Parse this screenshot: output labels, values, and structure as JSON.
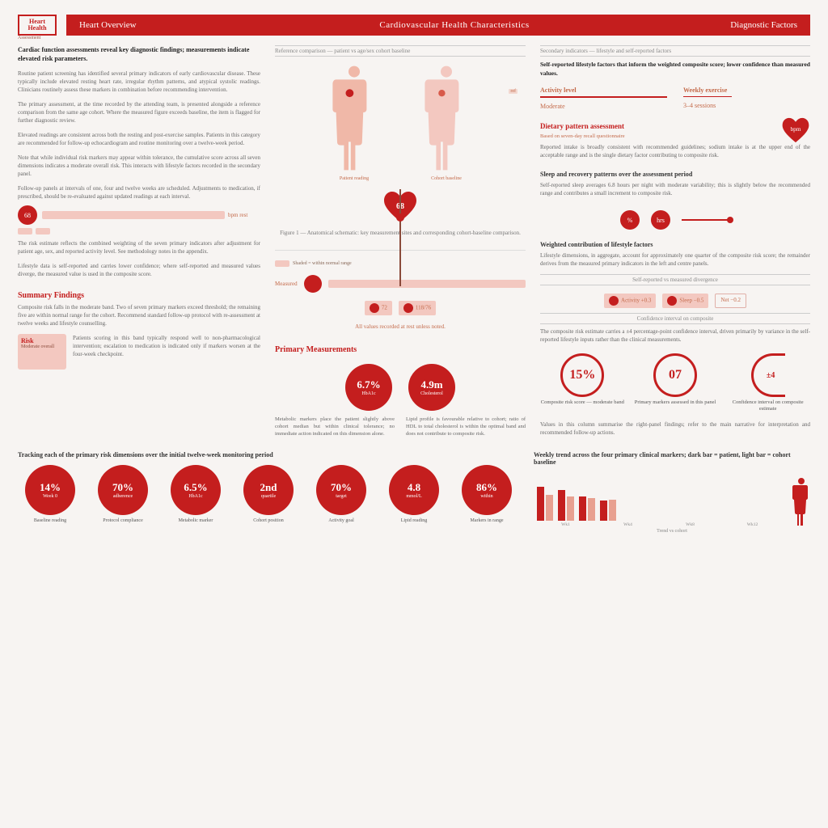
{
  "colors": {
    "accent": "#c41e1e",
    "accent_light": "#f3c8c0",
    "text": "#3a3a3a",
    "text_muted": "#666",
    "bg": "#f7f4f2"
  },
  "logo": {
    "title": "Heart\nHealth",
    "sub": "Assessment"
  },
  "header": {
    "left": "Heart Overview",
    "center": "Cardiovascular Health Characteristics",
    "right": "Diagnostic Factors"
  },
  "left": {
    "intro": "Cardiac function assessments reveal key diagnostic findings; measurements indicate elevated risk parameters.",
    "p1": "Routine patient screening has identified several primary indicators of early cardiovascular disease. These typically include elevated resting heart rate, irregular rhythm patterns, and atypical systolic readings. Clinicians routinely assess these markers in combination before recommending intervention.",
    "p2": "The primary assessment, at the time recorded by the attending team, is presented alongside a reference comparison from the same age cohort. Where the measured figure exceeds baseline, the item is flagged for further diagnostic review.",
    "p3": "Elevated readings are consistent across both the resting and post-exercise samples. Patients in this category are recommended for follow-up echocardiogram and routine monitoring over a twelve-week period.",
    "p4": "Note that while individual risk markers may appear within tolerance, the cumulative score across all seven dimensions indicates a moderate overall risk. This interacts with lifestyle factors recorded in the secondary panel.",
    "p5": "Follow-up panels at intervals of one, four and twelve weeks are scheduled. Adjustments to medication, if prescribed, should be re-evaluated against updated readings at each interval.",
    "prog": {
      "dot": "68",
      "label": "bpm rest"
    },
    "p6": "The risk estimate reflects the combined weighting of the seven primary indicators after adjustment for patient age, sex, and reported activity level. See methodology notes in the appendix.",
    "p7": "Lifestyle data is self-reported and carries lower confidence; where self-reported and measured values diverge, the measured value is used in the composite score.",
    "section": "Summary Findings",
    "p8": "Composite risk falls in the moderate band. Two of seven primary markers exceed threshold; the remaining five are within normal range for the cohort. Recommend standard follow-up protocol with re-assessment at twelve weeks and lifestyle counselling.",
    "card": {
      "title": "Risk",
      "body": "Moderate overall"
    },
    "p9": "Patients scoring in this band typically respond well to non-pharmacological intervention; escalation to medication is indicated only if markers worsen at the four-week checkpoint."
  },
  "mid": {
    "small_hdr": "Reference comparison — patient vs age/sex cohort baseline",
    "body_left_label": "Patient reading",
    "body_right_label": "Cohort baseline",
    "heart_val": "68",
    "heart_tag": "bpm",
    "caption": "Figure 1 — Anatomical schematic: key measurement sites and corresponding cohort-baseline comparison.",
    "legend": "Shaded = within normal range",
    "bar_label": "Measured",
    "chip1": "72",
    "chip2": "118/76",
    "foot": "All values recorded at rest unless noted.",
    "section": "Primary Measurements",
    "circ1": {
      "val": "6.7%",
      "sub": "HbA1c"
    },
    "circ2": {
      "val": "4.9m",
      "sub": "Cholesterol"
    },
    "col1": "Metabolic markers place the patient slightly above cohort median but within clinical tolerance; no immediate action indicated on this dimension alone.",
    "col2": "Lipid profile is favourable relative to cohort; ratio of HDL to total cholesterol is within the optimal band and does not contribute to composite risk."
  },
  "right": {
    "small_hdr": "Secondary indicators — lifestyle and self-reported factors",
    "intro": "Self-reported lifestyle factors that inform the weighted composite score; lower confidence than measured values.",
    "kv": [
      {
        "k": "Activity level",
        "v": "Moderate"
      },
      {
        "k": "Weekly exercise",
        "v": "3–4 sessions"
      }
    ],
    "h1": "Dietary pattern assessment",
    "h1_sub": "Based on seven-day recall questionnaire",
    "p1": "Reported intake is broadly consistent with recommended guidelines; sodium intake is at the upper end of the acceptable range and is the single dietary factor contributing to composite risk.",
    "h2": "Sleep and recovery patterns over the assessment period",
    "p2": "Self-reported sleep averages 6.8 hours per night with moderate variability; this is slightly below the recommended range and contributes a small increment to composite risk.",
    "icons": [
      "%",
      "hrs"
    ],
    "h3": "Weighted contribution of lifestyle factors",
    "p3": "Lifestyle dimensions, in aggregate, account for approximately one quarter of the composite risk score; the remainder derives from the measured primary indicators in the left and centre panels.",
    "sec_hdr": "Self-reported vs measured divergence",
    "chips": [
      "Activity +0.3",
      "Sleep −0.5"
    ],
    "box": "Net −0.2",
    "sec_hdr2": "Confidence interval on composite",
    "p4": "The composite risk estimate carries a ±4 percentage-point confidence interval, driven primarily by variance in the self-reported lifestyle inputs rather than the clinical measurements.",
    "ring1": {
      "val": "15%",
      "label": "Composite risk score — moderate band"
    },
    "ring2": {
      "val": "07",
      "label": "Primary markers assessed in this panel"
    },
    "half": {
      "val": "±4",
      "label": "Confidence interval on composite estimate"
    },
    "p5": "Values in this column summarise the right-panel findings; refer to the main narrative for interpretation and recommended follow-up actions."
  },
  "bottom": {
    "left_title": "Tracking each of the primary risk dimensions over the initial twelve-week monitoring period",
    "dots": [
      {
        "v": "14%",
        "s": "Week 0",
        "l": "Baseline reading"
      },
      {
        "v": "70%",
        "s": "adherence",
        "l": "Protocol compliance"
      },
      {
        "v": "6.5%",
        "s": "HbA1c",
        "l": "Metabolic marker"
      },
      {
        "v": "2nd",
        "s": "quartile",
        "l": "Cohort position"
      },
      {
        "v": "70%",
        "s": "target",
        "l": "Activity goal"
      },
      {
        "v": "4.8",
        "s": "mmol/L",
        "l": "Lipid reading"
      },
      {
        "v": "86%",
        "s": "within",
        "l": "Markers in range"
      }
    ],
    "right_title": "Weekly trend across the four primary clinical markers; dark bar = patient, light bar = cohort baseline",
    "chart": {
      "type": "grouped-bar",
      "groups": [
        "Wk1",
        "Wk4",
        "Wk8",
        "Wk12"
      ],
      "series": [
        {
          "name": "patient",
          "color": "#c41e1e",
          "values": [
            42,
            38,
            30,
            25
          ]
        },
        {
          "name": "cohort",
          "color": "#e8a090",
          "values": [
            32,
            30,
            28,
            26
          ]
        }
      ],
      "ymax": 50,
      "hpx": 50
    },
    "chart_side_label": "Trend vs cohort"
  }
}
